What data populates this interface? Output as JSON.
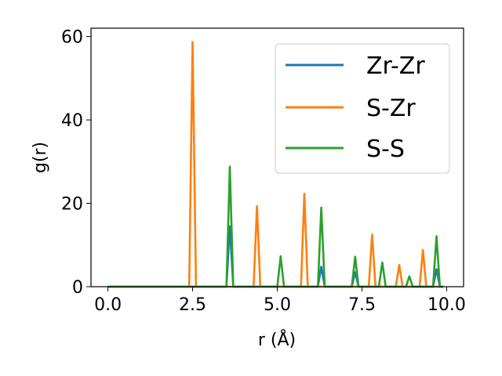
{
  "chart_data": {
    "type": "line",
    "title": "",
    "xlabel": "r (Å)",
    "ylabel": "g(r)",
    "xlim": [
      -0.5,
      10.5
    ],
    "ylim": [
      0,
      62
    ],
    "xticks": [
      0.0,
      2.5,
      5.0,
      7.5,
      10.0
    ],
    "xtick_labels": [
      "0.0",
      "2.5",
      "5.0",
      "7.5",
      "10.0"
    ],
    "yticks": [
      0,
      20,
      40,
      60
    ],
    "ytick_labels": [
      "0",
      "20",
      "40",
      "60"
    ],
    "grid": false,
    "legend_position": "top-right",
    "series": [
      {
        "name": "Zr-Zr",
        "color": "#1f77b4",
        "x": [
          0.0,
          3.5,
          3.6,
          3.7,
          6.2,
          6.3,
          6.4,
          7.2,
          7.3,
          7.4,
          9.6,
          9.7,
          9.8,
          9.9
        ],
        "y": [
          0,
          0,
          14.5,
          0,
          0,
          4.8,
          0,
          0,
          3.5,
          0,
          0,
          4.2,
          0,
          0
        ]
      },
      {
        "name": "S-Zr",
        "color": "#ff7f0e",
        "x": [
          0.0,
          2.4,
          2.5,
          2.6,
          4.3,
          4.4,
          4.5,
          5.7,
          5.8,
          5.9,
          7.7,
          7.8,
          7.9,
          8.5,
          8.6,
          8.7,
          9.2,
          9.3,
          9.4,
          9.9
        ],
        "y": [
          0,
          0,
          58.7,
          0,
          0,
          19.3,
          0,
          0,
          22.3,
          0,
          0,
          12.5,
          0,
          0,
          5.2,
          0,
          0,
          8.8,
          0,
          0
        ]
      },
      {
        "name": "S-S",
        "color": "#2ca02c",
        "x": [
          0.0,
          3.5,
          3.6,
          3.7,
          5.0,
          5.1,
          5.2,
          6.2,
          6.3,
          6.4,
          7.2,
          7.3,
          7.4,
          8.0,
          8.1,
          8.2,
          8.8,
          8.9,
          9.0,
          9.6,
          9.7,
          9.8,
          9.9
        ],
        "y": [
          0,
          0,
          28.8,
          0,
          0,
          7.3,
          0,
          0,
          19.0,
          0,
          0,
          7.2,
          0,
          0,
          5.8,
          0,
          0,
          2.5,
          0,
          0,
          12.1,
          0,
          0
        ]
      }
    ]
  }
}
